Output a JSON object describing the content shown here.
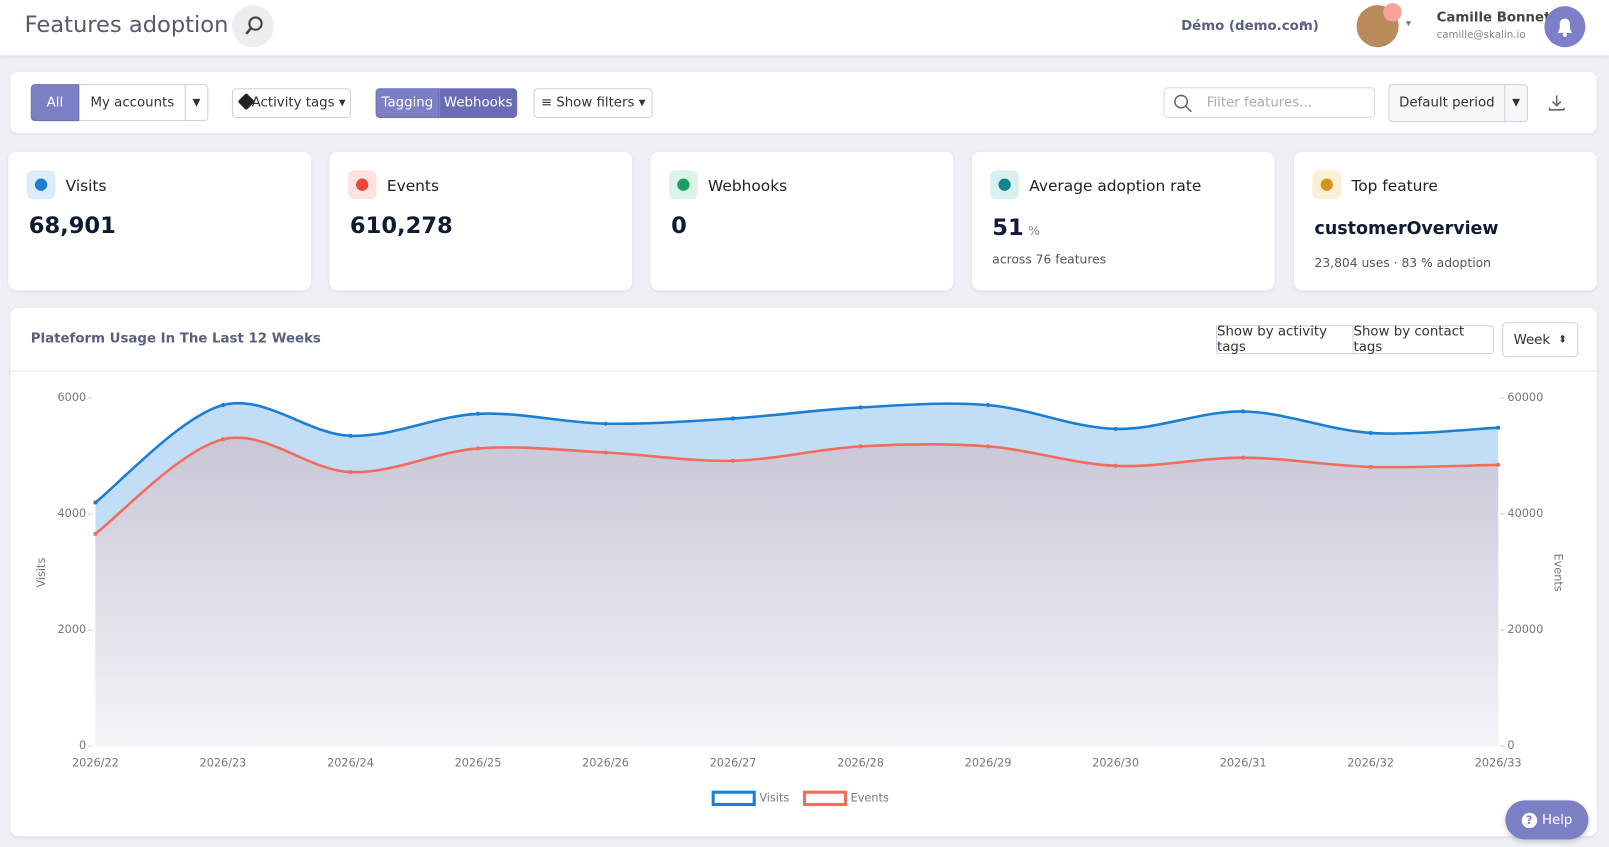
{
  "header": {
    "title": "Features adoption",
    "workspace": "Démo (demo.com)",
    "user_name": "Camille Bonnet",
    "user_email": "camille@skalin.io"
  },
  "toolbar": {
    "scope_buttons": [
      "All",
      "My accounts"
    ],
    "activity_tags": "Activity tags",
    "mode_buttons": [
      "Tagging",
      "Webhooks"
    ],
    "show_filters": "Show filters",
    "search_placeholder": "Filter features...",
    "period": "Default period"
  },
  "cards": [
    {
      "label": "Visits",
      "value": "68,901"
    },
    {
      "label": "Events",
      "value": "610,278"
    },
    {
      "label": "Webhooks",
      "value": "0"
    },
    {
      "label": "Average adoption rate",
      "value": "51",
      "unit": "%",
      "note": "across 76 features"
    },
    {
      "label": "Top feature",
      "value": "customerOverview",
      "note": "23,804 uses · 83 % adoption"
    }
  ],
  "panel": {
    "title": "Plateform Usage In The Last 12 Weeks",
    "buttons": [
      "Show by activity tags",
      "Show by contact tags"
    ],
    "granularity": "Week"
  },
  "chart_data": {
    "type": "line",
    "area": true,
    "categories": [
      "2026/22",
      "2026/23",
      "2026/24",
      "2026/25",
      "2026/26",
      "2026/27",
      "2026/28",
      "2026/29",
      "2026/30",
      "2026/31",
      "2026/32",
      "2026/33"
    ],
    "series": [
      {
        "name": "Visits",
        "color": "#1a7fd4",
        "values": [
          4200,
          5880,
          5350,
          5730,
          5560,
          5650,
          5840,
          5880,
          5470,
          5770,
          5400,
          5490
        ]
      },
      {
        "name": "Events",
        "color": "#f26b5b",
        "axis": "y2",
        "values": [
          36600,
          52900,
          47250,
          51330,
          50620,
          49200,
          51680,
          51680,
          48320,
          49730,
          48140,
          48500
        ]
      }
    ],
    "ylim": [
      0,
      6000
    ],
    "yticks": [
      0,
      2000,
      4000,
      6000
    ],
    "ylabel": "Visits",
    "y2lim": [
      0,
      60000
    ],
    "y2ticks": [
      0,
      20000,
      40000,
      60000
    ],
    "y2label": "Events",
    "grid": false,
    "legend": "bottom"
  },
  "help": "Help"
}
